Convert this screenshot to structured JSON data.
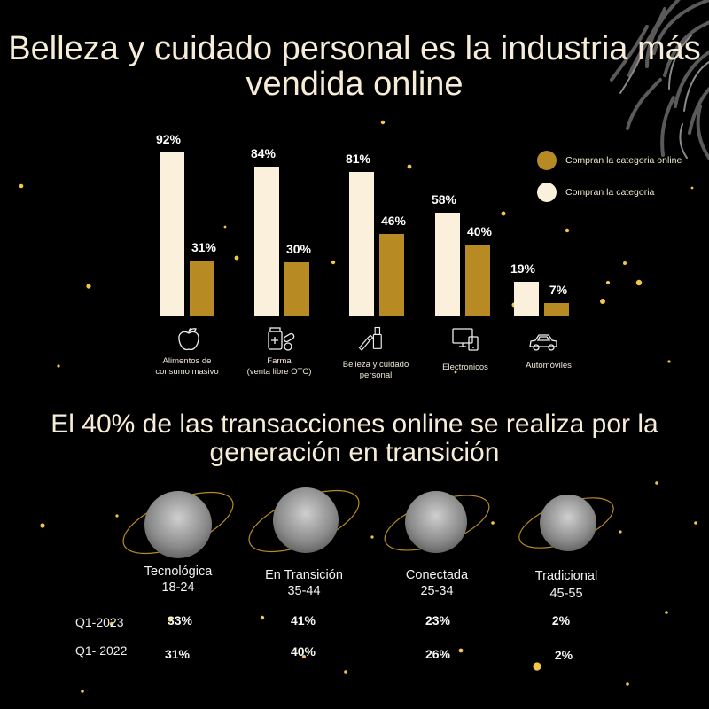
{
  "title": "Belleza y cuidado personal es la industria más vendida online",
  "subtitle": "El 40% de las transacciones online se realiza por la generación en transición",
  "colors": {
    "background": "#000000",
    "cream": "#fbf0dc",
    "gold": "#b88a24",
    "text": "#f6ecd8"
  },
  "chart_data": {
    "type": "bar",
    "title": "Belleza y cuidado personal es la industria más vendida online",
    "categories": [
      "Alimentos de consumo masivo",
      "Farma (venta libre OTC)",
      "Belleza y cuidado personal",
      "Electronicos",
      "Automóviles"
    ],
    "series": [
      {
        "name": "Compran la categoria",
        "values": [
          92,
          84,
          81,
          58,
          19
        ],
        "color": "#fbf0dc"
      },
      {
        "name": "Compran la categoria online",
        "values": [
          31,
          30,
          46,
          40,
          7
        ],
        "color": "#b88a24"
      }
    ],
    "value_labels": {
      "Compran la categoria": [
        "92%",
        "84%",
        "81%",
        "58%",
        "19%"
      ],
      "Compran la categoria online": [
        "31%",
        "30%",
        "46%",
        "40%",
        "7%"
      ]
    },
    "ylim": [
      0,
      100
    ],
    "grid": false,
    "legend_position": "top-right"
  },
  "legend": [
    {
      "label": "Compran la categoria online",
      "color": "#b88a24"
    },
    {
      "label": "Compran la categoria",
      "color": "#fbf0dc"
    }
  ],
  "category_labels": [
    {
      "line1": "Alimentos de",
      "line2": "consumo masivo",
      "icon": "apple-icon"
    },
    {
      "line1": "Farma",
      "line2": "(venta libre OTC)",
      "icon": "medicine-icon"
    },
    {
      "line1": "Belleza y cuidado",
      "line2": "personal",
      "icon": "cosmetics-icon"
    },
    {
      "line1": "Electronicos",
      "line2": "",
      "icon": "devices-icon"
    },
    {
      "line1": "Automóviles",
      "line2": "",
      "icon": "car-icon"
    }
  ],
  "generations": [
    {
      "name": "Tecnológica",
      "ages": "18-24",
      "q1_2023": "33%",
      "q1_2022": "31%"
    },
    {
      "name": "En Transición",
      "ages": "35-44",
      "q1_2023": "41%",
      "q1_2022": "40%"
    },
    {
      "name": "Conectada",
      "ages": "25-34",
      "q1_2023": "23%",
      "q1_2022": "26%"
    },
    {
      "name": "Tradicional",
      "ages": "45-55",
      "q1_2023": "2%",
      "q1_2022": "2%"
    }
  ],
  "rows": {
    "q1_2023": "Q1-2023",
    "q1_2022": "Q1- 2022"
  }
}
